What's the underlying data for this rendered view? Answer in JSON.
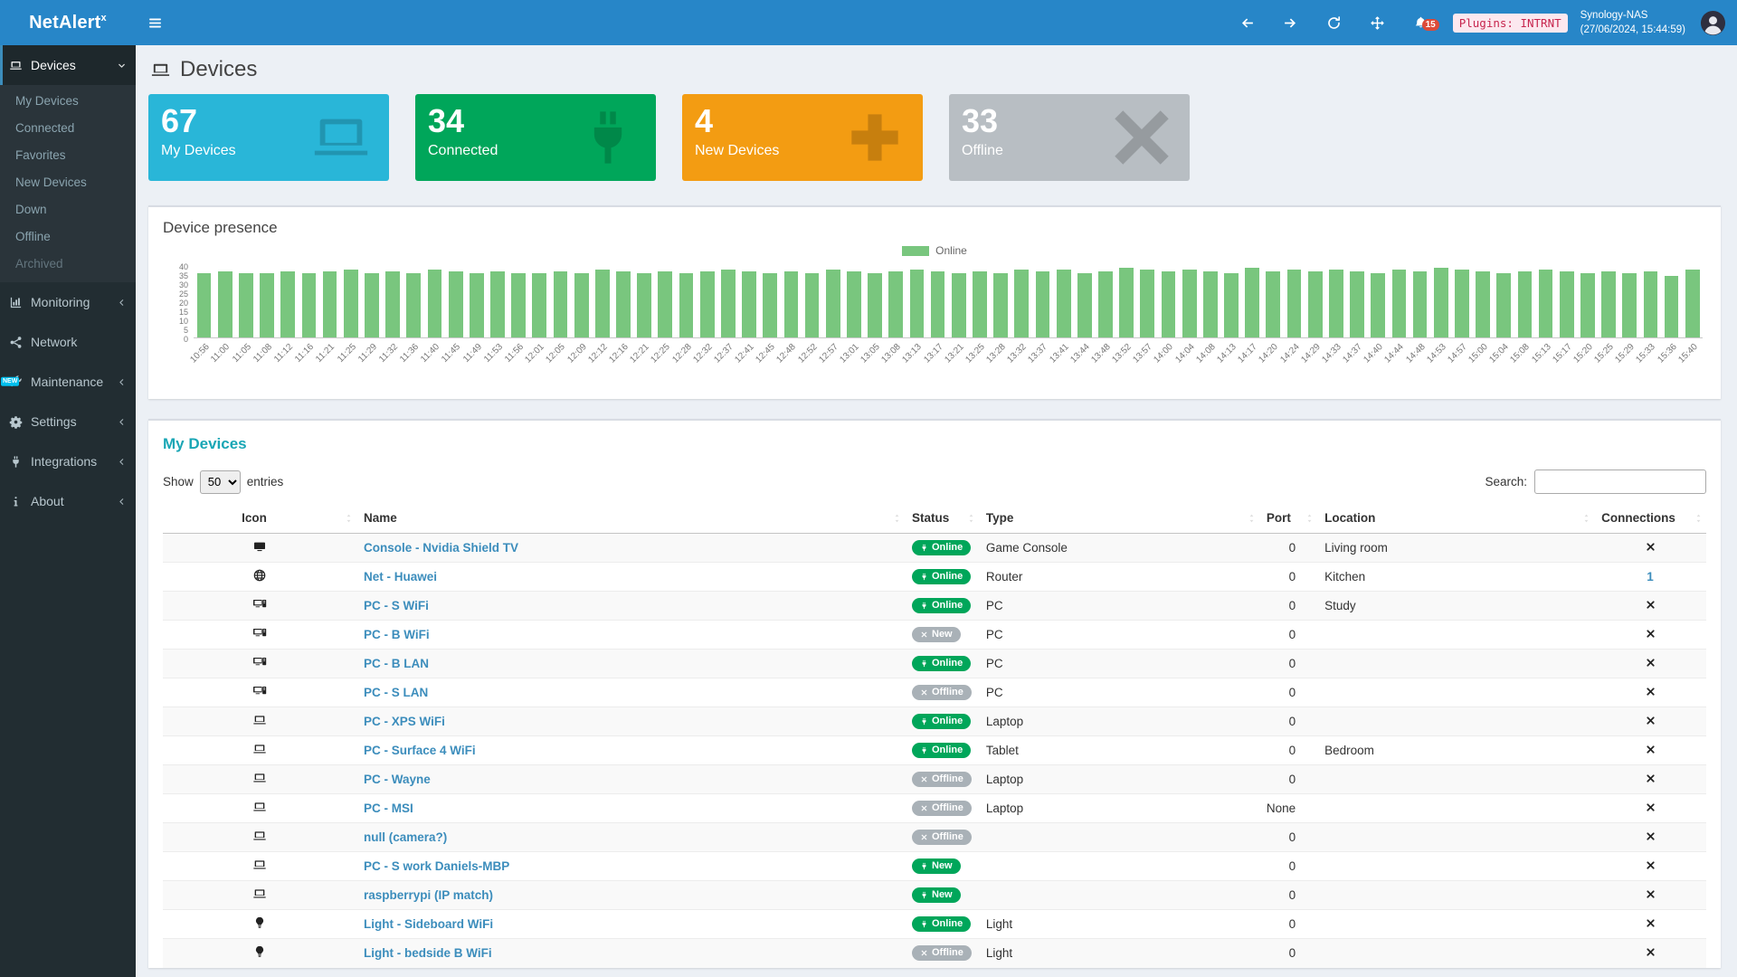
{
  "colors": {
    "navbar_blue": "#2786c8",
    "sidebar_dark": "#222d32",
    "sidebar_sub": "#2a343a",
    "content_bg": "#ecf0f5",
    "card_cyan": "#29b6d8",
    "card_green": "#00a65a",
    "card_orange": "#f39c12",
    "card_gray": "#b8bec3",
    "badge_green": "#00a65a",
    "badge_gray": "#a9b1b7",
    "link_blue": "#3c8dbc",
    "accent_teal": "#19a6b5",
    "bar_green": "#79c67e",
    "alert_red": "#dd4b39",
    "plugins_bg": "#fce8ef",
    "plugins_text": "#c7254e"
  },
  "app": {
    "brand_bold": "NetAlert",
    "brand_sup": "x",
    "notifications_count": "15",
    "plugins_label": "Plugins: INTRNT",
    "host": "Synology-NAS",
    "timestamp": "(27/06/2024, 15:44:59)"
  },
  "sidebar": {
    "sections": [
      {
        "label": "Devices",
        "icon": "laptop-icon",
        "chevron": "down",
        "active": true,
        "children": [
          {
            "label": "My Devices"
          },
          {
            "label": "Connected"
          },
          {
            "label": "Favorites"
          },
          {
            "label": "New Devices"
          },
          {
            "label": "Down"
          },
          {
            "label": "Offline"
          },
          {
            "label": "Archived",
            "muted": true
          }
        ]
      },
      {
        "label": "Monitoring",
        "icon": "chart-icon",
        "chevron": "left"
      },
      {
        "label": "Network",
        "icon": "network-icon"
      },
      {
        "label": "Maintenance",
        "icon": "wrench-icon",
        "chevron": "left",
        "badge": "NEW"
      },
      {
        "label": "Settings",
        "icon": "gear-icon",
        "chevron": "left"
      },
      {
        "label": "Integrations",
        "icon": "plug-icon",
        "chevron": "left"
      },
      {
        "label": "About",
        "icon": "info-icon",
        "chevron": "left"
      }
    ]
  },
  "page": {
    "title": "Devices"
  },
  "cards": [
    {
      "value": "67",
      "label": "My Devices",
      "color": "#29b6d8",
      "icon": "laptop-icon"
    },
    {
      "value": "34",
      "label": "Connected",
      "color": "#00a65a",
      "icon": "plug-icon"
    },
    {
      "value": "4",
      "label": "New Devices",
      "color": "#f39c12",
      "icon": "plus-icon"
    },
    {
      "value": "33",
      "label": "Offline",
      "color": "#b8bec3",
      "icon": "bigx-icon"
    }
  ],
  "presence": {
    "title": "Device presence",
    "legend_label": "Online"
  },
  "chart_data": {
    "type": "bar",
    "title": "Device presence",
    "legend": [
      "Online"
    ],
    "legend_position": "top-center",
    "bar_color": "#79c67e",
    "ylim": [
      0,
      40
    ],
    "yticks": [
      "40",
      "35",
      "30",
      "25",
      "20",
      "15",
      "10",
      "5",
      "0"
    ],
    "x": [
      "10:56",
      "11:00",
      "11:05",
      "11:08",
      "11:12",
      "11:16",
      "11:21",
      "11:25",
      "11:29",
      "11:32",
      "11:36",
      "11:40",
      "11:45",
      "11:49",
      "11:53",
      "11:56",
      "12:01",
      "12:05",
      "12:09",
      "12:12",
      "12:16",
      "12:21",
      "12:25",
      "12:28",
      "12:32",
      "12:37",
      "12:41",
      "12:45",
      "12:48",
      "12:52",
      "12:57",
      "13:01",
      "13:05",
      "13:08",
      "13:13",
      "13:17",
      "13:21",
      "13:25",
      "13:28",
      "13:32",
      "13:37",
      "13:41",
      "13:44",
      "13:48",
      "13:52",
      "13:57",
      "14:00",
      "14:04",
      "14:08",
      "14:13",
      "14:17",
      "14:20",
      "14:24",
      "14:29",
      "14:33",
      "14:37",
      "14:40",
      "14:44",
      "14:48",
      "14:53",
      "14:57",
      "15:00",
      "15:04",
      "15:08",
      "15:13",
      "15:17",
      "15:20",
      "15:25",
      "15:29",
      "15:33",
      "15:36",
      "15:40"
    ],
    "values": [
      34,
      35,
      34,
      34,
      35,
      34,
      35,
      36,
      34,
      35,
      34,
      36,
      35,
      34,
      35,
      34,
      34,
      35,
      34,
      36,
      35,
      34,
      35,
      34,
      35,
      36,
      35,
      34,
      35,
      34,
      36,
      35,
      34,
      35,
      36,
      35,
      34,
      35,
      34,
      36,
      35,
      36,
      34,
      35,
      37,
      36,
      35,
      36,
      35,
      34,
      37,
      35,
      36,
      35,
      36,
      35,
      34,
      36,
      35,
      37,
      36,
      35,
      34,
      35,
      36,
      35,
      34,
      35,
      34,
      35,
      33,
      36
    ]
  },
  "devices_panel": {
    "title": "My Devices",
    "show_label": "Show",
    "page_length": "50",
    "entries_label": "entries",
    "search_label": "Search:",
    "search_value": "",
    "columns": [
      "Icon",
      "Name",
      "Status",
      "Type",
      "Port",
      "Location",
      "Connections"
    ],
    "rows": [
      {
        "icon": "tv-icon",
        "name": "Console - Nvidia Shield TV",
        "status": "Online",
        "status_color": "green",
        "status_icon": "plug",
        "type": "Game Console",
        "port": "0",
        "location": "Living room",
        "connections": "x"
      },
      {
        "icon": "globe-icon",
        "name": "Net - Huawei",
        "status": "Online",
        "status_color": "green",
        "status_icon": "plug",
        "type": "Router",
        "port": "0",
        "location": "Kitchen",
        "connections": "1"
      },
      {
        "icon": "desktop-icon",
        "name": "PC - S WiFi",
        "status": "Online",
        "status_color": "green",
        "status_icon": "plug",
        "type": "PC",
        "port": "0",
        "location": "Study",
        "connections": "x"
      },
      {
        "icon": "desktop-icon",
        "name": "PC - B WiFi",
        "status": "New",
        "status_color": "gray",
        "status_icon": "x",
        "type": "PC",
        "port": "0",
        "location": "",
        "connections": "x"
      },
      {
        "icon": "desktop-icon",
        "name": "PC - B LAN",
        "status": "Online",
        "status_color": "green",
        "status_icon": "plug",
        "type": "PC",
        "port": "0",
        "location": "",
        "connections": "x"
      },
      {
        "icon": "desktop-icon",
        "name": "PC - S LAN",
        "status": "Offline",
        "status_color": "gray",
        "status_icon": "x",
        "type": "PC",
        "port": "0",
        "location": "",
        "connections": "x"
      },
      {
        "icon": "laptop-icon",
        "name": "PC - XPS WiFi",
        "status": "Online",
        "status_color": "green",
        "status_icon": "plug",
        "type": "Laptop",
        "port": "0",
        "location": "",
        "connections": "x"
      },
      {
        "icon": "laptop-icon",
        "name": "PC - Surface 4 WiFi",
        "status": "Online",
        "status_color": "green",
        "status_icon": "plug",
        "type": "Tablet",
        "port": "0",
        "location": "Bedroom",
        "connections": "x"
      },
      {
        "icon": "laptop-icon",
        "name": "PC - Wayne",
        "status": "Offline",
        "status_color": "gray",
        "status_icon": "x",
        "type": "Laptop",
        "port": "0",
        "location": "",
        "connections": "x"
      },
      {
        "icon": "laptop-icon",
        "name": "PC - MSI",
        "status": "Offline",
        "status_color": "gray",
        "status_icon": "x",
        "type": "Laptop",
        "port": "None",
        "location": "",
        "connections": "x"
      },
      {
        "icon": "laptop-icon",
        "name": "null (camera?)",
        "status": "Offline",
        "status_color": "gray",
        "status_icon": "x",
        "type": "",
        "port": "0",
        "location": "",
        "connections": "x"
      },
      {
        "icon": "laptop-icon",
        "name": "PC - S work Daniels-MBP",
        "status": "New",
        "status_color": "green",
        "status_icon": "plug",
        "type": "",
        "port": "0",
        "location": "",
        "connections": "x"
      },
      {
        "icon": "laptop-icon",
        "name": "raspberrypi (IP match)",
        "status": "New",
        "status_color": "green",
        "status_icon": "plug",
        "type": "",
        "port": "0",
        "location": "",
        "connections": "x"
      },
      {
        "icon": "lightbulb-icon",
        "name": "Light - Sideboard WiFi",
        "status": "Online",
        "status_color": "green",
        "status_icon": "plug",
        "type": "Light",
        "port": "0",
        "location": "",
        "connections": "x"
      },
      {
        "icon": "lightbulb-icon",
        "name": "Light - bedside B WiFi",
        "status": "Offline",
        "status_color": "gray",
        "status_icon": "x",
        "type": "Light",
        "port": "0",
        "location": "",
        "connections": "x"
      }
    ]
  }
}
